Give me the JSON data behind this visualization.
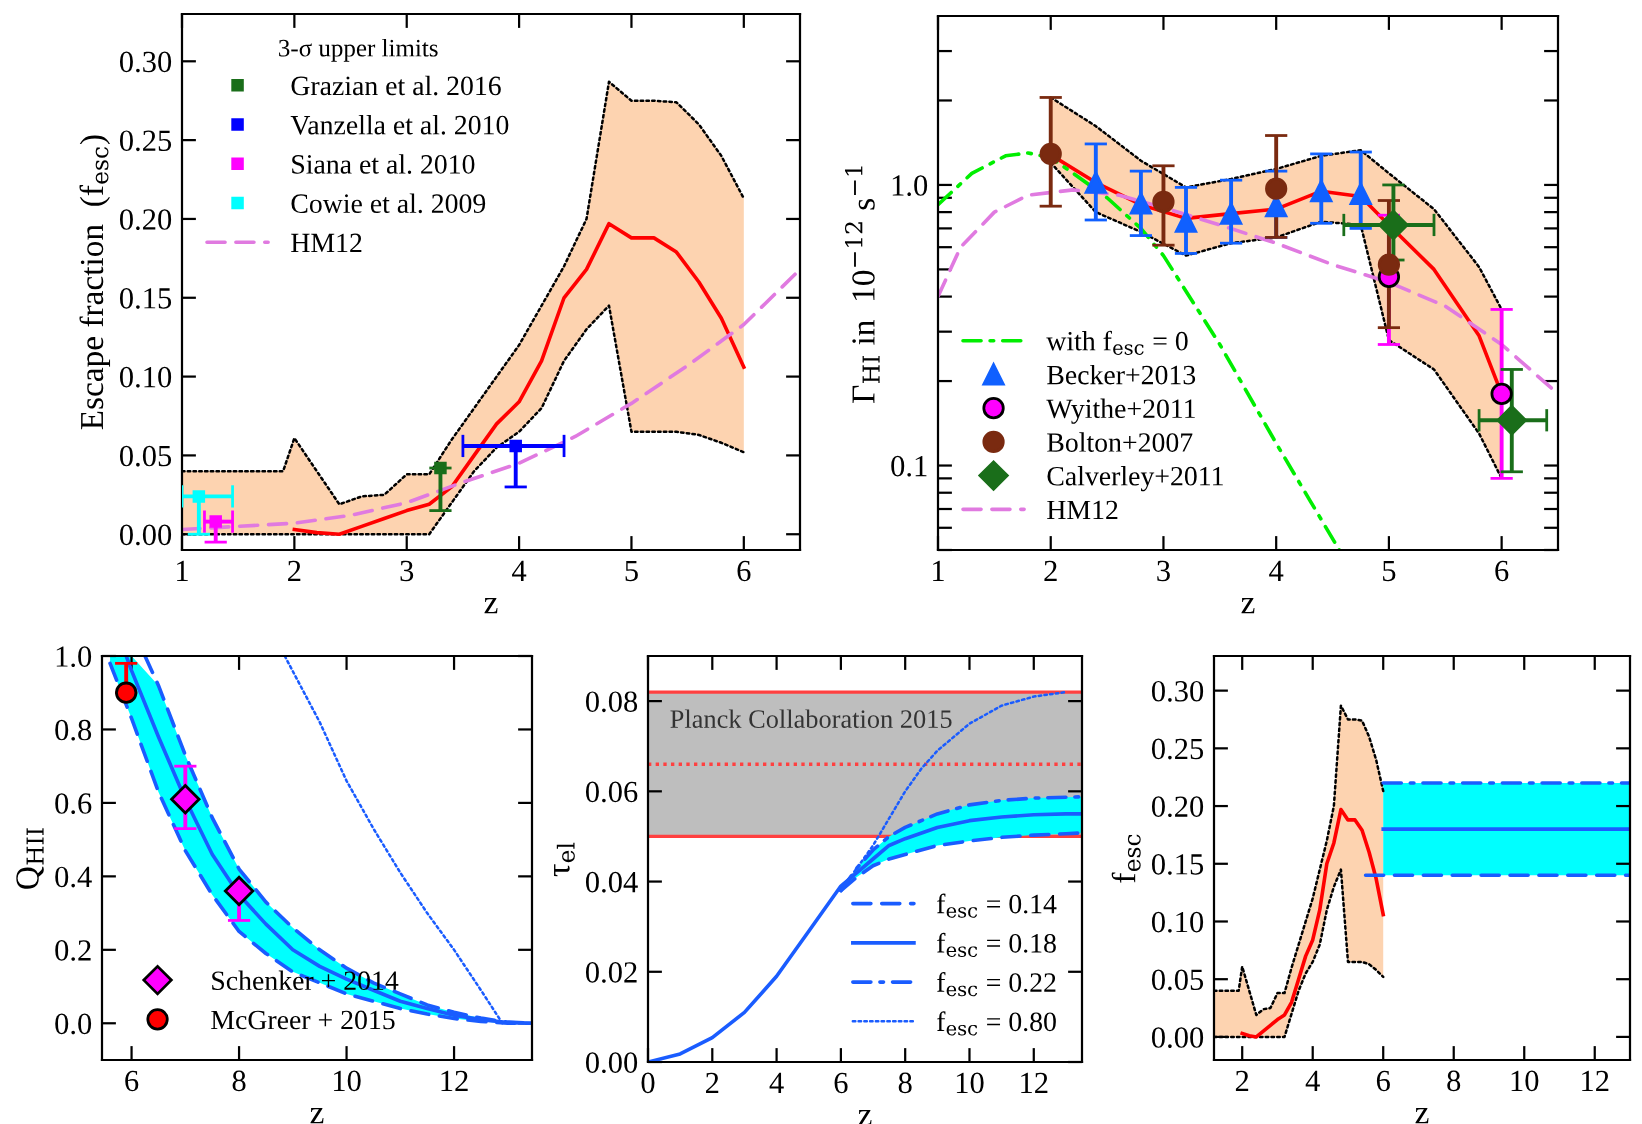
{
  "chart_data": [
    {
      "type": "line",
      "xlabel": "z",
      "ylabel": "Escape fraction  (f$_{esc}$)",
      "xlim": [
        1,
        6.5
      ],
      "ylim": [
        -0.01,
        0.33
      ],
      "xticks": [
        1,
        2,
        3,
        4,
        5,
        6
      ],
      "yticks": [
        {
          "value": 0,
          "label": "0.00"
        },
        {
          "value": 0.05,
          "label": "0.05"
        },
        {
          "value": 0.1,
          "label": "0.10"
        },
        {
          "value": 0.15,
          "label": "0.15"
        },
        {
          "value": 0.2,
          "label": "0.20"
        },
        {
          "value": 0.25,
          "label": "0.25"
        },
        {
          "value": 0.3,
          "label": "0.30"
        }
      ],
      "legend": "top left",
      "legend_title": "3-σ upper limits",
      "series": [
        {
          "type": "line",
          "color": "#fdd3b0",
          "x": [
            1.0,
            1.2,
            1.4,
            1.6,
            1.8,
            1.9,
            2.0,
            2.2,
            2.4,
            2.6,
            2.8,
            3.0,
            3.2,
            3.4,
            3.6,
            3.8,
            4.0,
            4.2,
            4.4,
            4.6,
            4.8,
            5.0,
            5.2,
            5.4,
            5.6,
            5.8,
            6.0
          ],
          "values": [
            null,
            null,
            null,
            null,
            null,
            null,
            null,
            null,
            null,
            null,
            null,
            null,
            null,
            null,
            null,
            null,
            null,
            null,
            null,
            null,
            null,
            null,
            null,
            null,
            null,
            null,
            null
          ],
          "lower": [
            0,
            0,
            0,
            0,
            0,
            0,
            0,
            0,
            0,
            0,
            0,
            0,
            0,
            0.02,
            0.04,
            0.055,
            0.065,
            0.08,
            0.11,
            0.13,
            0.145,
            0.065,
            0.065,
            0.065,
            0.063,
            0.058,
            0.052
          ],
          "upper": [
            0.04,
            0.04,
            0.04,
            0.04,
            0.04,
            0.04,
            0.061,
            0.04,
            0.019,
            0.024,
            0.025,
            0.038,
            0.038,
            0.06,
            0.08,
            0.1,
            0.12,
            0.145,
            0.17,
            0.2,
            0.287,
            0.275,
            0.275,
            0.274,
            0.26,
            0.24,
            0.213
          ]
        },
        {
          "type": "line",
          "color": "#000000",
          "line_style": "dotted",
          "x": [
            1.0,
            1.2,
            1.4,
            1.6,
            1.8,
            1.9,
            2.0,
            2.2,
            2.4,
            2.6,
            2.8,
            3.0,
            3.2,
            3.4,
            3.6,
            3.8,
            4.0,
            4.2,
            4.4,
            4.6,
            4.8,
            5.0,
            5.2,
            5.4,
            5.6,
            5.8,
            6.0
          ],
          "values": [
            0,
            0,
            0,
            0,
            0,
            0,
            0,
            0,
            0,
            0,
            0,
            0,
            0,
            0.02,
            0.04,
            0.055,
            0.065,
            0.08,
            0.11,
            0.13,
            0.145,
            0.065,
            0.065,
            0.065,
            0.063,
            0.058,
            0.052
          ]
        },
        {
          "type": "line",
          "color": "#000000",
          "line_style": "dotted",
          "x": [
            1.0,
            1.2,
            1.4,
            1.6,
            1.8,
            1.9,
            2.0,
            2.2,
            2.4,
            2.6,
            2.8,
            3.0,
            3.2,
            3.4,
            3.6,
            3.8,
            4.0,
            4.2,
            4.4,
            4.6,
            4.8,
            5.0,
            5.2,
            5.4,
            5.6,
            5.8,
            6.0
          ],
          "values": [
            0.04,
            0.04,
            0.04,
            0.04,
            0.04,
            0.04,
            0.061,
            0.04,
            0.019,
            0.024,
            0.025,
            0.038,
            0.038,
            0.06,
            0.08,
            0.1,
            0.12,
            0.145,
            0.17,
            0.2,
            0.287,
            0.275,
            0.275,
            0.274,
            0.26,
            0.24,
            0.213
          ]
        },
        {
          "type": "line",
          "color": "#ff0000",
          "line_style": "solid",
          "x": [
            2.0,
            2.2,
            2.4,
            2.6,
            2.8,
            3.0,
            3.2,
            3.4,
            3.6,
            3.8,
            4.0,
            4.2,
            4.4,
            4.6,
            4.8,
            5.0,
            5.2,
            5.4,
            5.6,
            5.8,
            6.0
          ],
          "values": [
            0.003,
            0.001,
            0.0,
            0.005,
            0.01,
            0.015,
            0.019,
            0.03,
            0.05,
            0.07,
            0.084,
            0.11,
            0.15,
            0.168,
            0.197,
            0.188,
            0.188,
            0.179,
            0.16,
            0.137,
            0.106
          ]
        },
        {
          "type": "scatter",
          "name": "Grazian et al. 2016",
          "color": "#1a6e1a",
          "marker": "square",
          "x": [
            3.3
          ],
          "values": [
            0.042
          ],
          "errors": [
            [
              0.015,
              0.042
            ]
          ]
        },
        {
          "type": "scatter",
          "name": "Vanzella et al. 2010",
          "color": "#0000ff",
          "marker": "square",
          "x": [
            3.97
          ],
          "values": [
            0.056
          ],
          "errors": [
            [
              0.03,
              0.056
            ]
          ],
          "xerrors": [
            [
              3.5,
              4.4
            ]
          ]
        },
        {
          "type": "scatter",
          "name": "Siana et al. 2010",
          "color": "#ff00ff",
          "marker": "square",
          "x": [
            1.3
          ],
          "values": [
            0.008
          ],
          "errors": [
            [
              -0.005,
              0.008
            ]
          ],
          "xerrors": [
            [
              1.2,
              1.45
            ]
          ]
        },
        {
          "type": "scatter",
          "name": "Cowie et al. 2009",
          "color": "#00ffff",
          "marker": "square",
          "x": [
            1.15
          ],
          "values": [
            0.024
          ],
          "errors": [
            [
              0.0,
              0.024
            ]
          ],
          "xerrors": [
            [
              1.0,
              1.45
            ]
          ]
        },
        {
          "name": "HM12",
          "color": "#e07ae0",
          "line_style": "dashed",
          "x": [
            1,
            1.5,
            2,
            2.5,
            3,
            3.5,
            4,
            4.5,
            5,
            5.5,
            6,
            6.5
          ],
          "values": [
            0.003,
            0.005,
            0.007,
            0.012,
            0.02,
            0.033,
            0.045,
            0.062,
            0.083,
            0.107,
            0.133,
            0.168
          ]
        }
      ]
    },
    {
      "type": "line",
      "xlabel": "z",
      "ylabel": "Γ$_{HI}$ in  10$^{−12}$ s$^{−1}$",
      "log": "y",
      "xlim": [
        1,
        6.5
      ],
      "ylim": [
        0.05,
        4
      ],
      "xticks": [
        1,
        2,
        3,
        4,
        5,
        6
      ],
      "yticks": [
        {
          "value": 0.05,
          "label": null
        },
        {
          "value": 0.06,
          "label": null
        },
        {
          "value": 0.07,
          "label": null
        },
        {
          "value": 0.08,
          "label": null
        },
        {
          "value": 0.09,
          "label": null
        },
        {
          "value": 0.1,
          "label": "0.1"
        },
        {
          "value": 0.2,
          "label": null
        },
        {
          "value": 0.3,
          "label": null
        },
        {
          "value": 0.4,
          "label": null
        },
        {
          "value": 0.5,
          "label": null
        },
        {
          "value": 0.6,
          "label": null
        },
        {
          "value": 0.7,
          "label": null
        },
        {
          "value": 0.8,
          "label": null
        },
        {
          "value": 0.9,
          "label": null
        },
        {
          "value": 1,
          "label": "1.0"
        },
        {
          "value": 2,
          "label": null
        },
        {
          "value": 3,
          "label": null
        }
      ],
      "legend": "lower left",
      "series": [
        {
          "type": "line",
          "color": "#fdd3b0",
          "x": [
            2.0,
            2.4,
            2.8,
            3.2,
            3.6,
            4.0,
            4.4,
            4.75,
            5.0,
            5.4,
            5.8,
            6.0
          ],
          "values": [
            null,
            null,
            null,
            null,
            null,
            null,
            null,
            null,
            null,
            null,
            null,
            null
          ],
          "lower": [
            1.2,
            0.8,
            0.68,
            0.56,
            0.62,
            0.65,
            0.74,
            0.72,
            0.28,
            0.22,
            0.13,
            0.09
          ],
          "upper": [
            2.05,
            1.62,
            1.22,
            0.98,
            1.05,
            1.14,
            1.27,
            1.33,
            1.1,
            0.82,
            0.51,
            0.36
          ]
        },
        {
          "type": "line",
          "color": "#000000",
          "line_style": "dotted",
          "x": [
            2.0,
            2.4,
            2.8,
            3.2,
            3.6,
            4.0,
            4.4,
            4.75,
            5.0,
            5.4,
            5.8,
            6.0
          ],
          "values": [
            1.2,
            0.8,
            0.68,
            0.56,
            0.62,
            0.65,
            0.74,
            0.72,
            0.28,
            0.22,
            0.13,
            0.09
          ]
        },
        {
          "type": "line",
          "color": "#000000",
          "line_style": "dotted",
          "x": [
            2.0,
            2.4,
            2.8,
            3.2,
            3.6,
            4.0,
            4.4,
            4.75,
            5.0,
            5.4,
            5.8,
            6.0
          ],
          "values": [
            2.05,
            1.62,
            1.22,
            0.98,
            1.05,
            1.14,
            1.27,
            1.33,
            1.1,
            0.82,
            0.51,
            0.36
          ]
        },
        {
          "type": "line",
          "color": "#ff0000",
          "line_style": "solid",
          "x": [
            2.0,
            2.4,
            2.8,
            3.2,
            3.6,
            4.0,
            4.4,
            4.75,
            5.0,
            5.4,
            5.8,
            6.0
          ],
          "values": [
            1.28,
            1.02,
            0.85,
            0.76,
            0.79,
            0.82,
            0.95,
            0.91,
            0.72,
            0.5,
            0.29,
            0.18
          ]
        },
        {
          "name": "with f$_{esc}$ = 0",
          "color": "#00ee00",
          "line_style": "dashdot",
          "x": [
            1.0,
            1.3,
            1.6,
            1.8,
            2.0,
            2.2,
            2.5,
            2.8,
            3.0,
            3.5,
            4.0,
            4.3,
            4.56
          ],
          "values": [
            0.85,
            1.1,
            1.27,
            1.3,
            1.25,
            1.1,
            0.9,
            0.7,
            0.56,
            0.27,
            0.12,
            0.075,
            0.05
          ]
        },
        {
          "type": "scatter",
          "name": "Becker+2013",
          "color": "#1060ff",
          "marker": "triangle",
          "x": [
            2.4,
            2.8,
            3.2,
            3.6,
            4.0,
            4.4,
            4.75
          ],
          "values": [
            1.02,
            0.86,
            0.74,
            0.79,
            0.84,
            0.95,
            0.93
          ],
          "errors": [
            [
              0.75,
              1.4
            ],
            [
              0.66,
              1.12
            ],
            [
              0.57,
              0.98
            ],
            [
              0.62,
              1.04
            ],
            [
              0.65,
              1.12
            ],
            [
              0.73,
              1.29
            ],
            [
              0.7,
              1.31
            ]
          ]
        },
        {
          "type": "scatter",
          "name": "Wyithe+2011",
          "color": "#ff00ff",
          "marker": "circle",
          "x": [
            5.0,
            6.0
          ],
          "values": [
            0.47,
            0.18
          ],
          "errors": [
            [
              0.27,
              0.78
            ],
            [
              0.09,
              0.36
            ]
          ]
        },
        {
          "type": "scatter",
          "name": "Bolton+2007",
          "color": "#7a2a10",
          "marker": "circle",
          "x": [
            2.0,
            3.0,
            4.0,
            5.0
          ],
          "values": [
            1.29,
            0.87,
            0.97,
            0.52
          ],
          "errors": [
            [
              0.84,
              2.05
            ],
            [
              0.61,
              1.17
            ],
            [
              0.65,
              1.5
            ],
            [
              0.31,
              0.88
            ]
          ]
        },
        {
          "type": "scatter",
          "name": "Calverley+2011",
          "color": "#1a6e1a",
          "marker": "diamond",
          "x": [
            5.04,
            6.09
          ],
          "values": [
            0.72,
            0.145
          ],
          "errors": [
            [
              0.54,
              1.0
            ],
            [
              0.095,
              0.22
            ]
          ],
          "xerrors": [
            [
              4.6,
              5.4
            ],
            [
              5.8,
              6.4
            ]
          ]
        },
        {
          "name": "HM12",
          "color": "#e07ae0",
          "line_style": "dashed",
          "x": [
            1.0,
            1.2,
            1.5,
            1.8,
            2.2,
            2.6,
            3.0,
            3.5,
            4.0,
            4.5,
            5.0,
            5.5,
            6.0,
            6.5
          ],
          "values": [
            0.4,
            0.6,
            0.8,
            0.92,
            0.96,
            0.92,
            0.83,
            0.72,
            0.62,
            0.52,
            0.45,
            0.37,
            0.27,
            0.18
          ]
        }
      ]
    },
    {
      "type": "line",
      "xlabel": "z",
      "ylabel": "Q$_{HII}$",
      "xlim": [
        5.45,
        13.45
      ],
      "ylim": [
        -0.1,
        1.0
      ],
      "xticks": [
        6,
        8,
        10,
        12
      ],
      "yticks": [
        {
          "value": 0,
          "label": "0.0"
        },
        {
          "value": 0.2,
          "label": "0.2"
        },
        {
          "value": 0.4,
          "label": "0.4"
        },
        {
          "value": 0.6,
          "label": "0.6"
        },
        {
          "value": 0.8,
          "label": "0.8"
        },
        {
          "value": 1.0,
          "label": "1.0"
        }
      ],
      "legend": "lower left",
      "series": [
        {
          "type": "line",
          "color": "#00ffff",
          "x": [
            5.6,
            6.0,
            6.5,
            7.0,
            7.5,
            8.0,
            8.5,
            9.0,
            9.5,
            10,
            10.5,
            11,
            11.5,
            12,
            12.5,
            13,
            13.45
          ],
          "values": [
            null,
            null,
            null,
            null,
            null,
            null,
            null,
            null,
            null,
            null,
            null,
            null,
            null,
            null,
            null,
            null,
            null
          ],
          "lower": [
            0.98,
            0.83,
            0.63,
            0.47,
            0.35,
            0.25,
            0.19,
            0.14,
            0.11,
            0.08,
            0.06,
            0.04,
            0.025,
            0.013,
            0.005,
            0.0,
            0.0
          ],
          "upper": [
            1.0,
            1.0,
            0.92,
            0.73,
            0.56,
            0.42,
            0.33,
            0.26,
            0.2,
            0.15,
            0.11,
            0.08,
            0.05,
            0.03,
            0.014,
            0.003,
            0.0
          ]
        },
        {
          "type": "line",
          "color": "#1a5cff",
          "line_style": "dashed",
          "x": [
            5.6,
            6.0,
            6.5,
            7.0,
            7.5,
            8.0,
            8.5,
            9.0,
            9.5,
            10,
            10.5,
            11,
            11.5,
            12,
            12.5,
            13,
            13.45
          ],
          "values": [
            0.98,
            0.83,
            0.63,
            0.47,
            0.35,
            0.25,
            0.19,
            0.14,
            0.11,
            0.08,
            0.06,
            0.04,
            0.025,
            0.013,
            0.005,
            0.0,
            0.0
          ]
        },
        {
          "type": "line",
          "color": "#1a5cff",
          "line_style": "dashed",
          "x": [
            6.25,
            6.5,
            7.0,
            7.5,
            8.0,
            8.5,
            9.0,
            9.5,
            10,
            10.5,
            11,
            11.5,
            12,
            12.5,
            13,
            13.45
          ],
          "values": [
            1.0,
            0.92,
            0.73,
            0.56,
            0.42,
            0.33,
            0.26,
            0.2,
            0.15,
            0.11,
            0.08,
            0.05,
            0.03,
            0.014,
            0.003,
            0.0
          ]
        },
        {
          "type": "line",
          "color": "#1a5cff",
          "line_style": "solid",
          "x": [
            5.9,
            6.0,
            6.5,
            7.0,
            7.5,
            8.0,
            8.5,
            9.0,
            9.5,
            10,
            10.5,
            11,
            11.5,
            12,
            12.5,
            13,
            13.45
          ],
          "values": [
            1.0,
            0.96,
            0.78,
            0.61,
            0.46,
            0.35,
            0.27,
            0.2,
            0.155,
            0.12,
            0.09,
            0.06,
            0.04,
            0.022,
            0.01,
            0.002,
            0.0
          ]
        },
        {
          "type": "line",
          "color": "#1a5cff",
          "line_style": "dotted",
          "x": [
            8.85,
            9.5,
            10,
            10.5,
            11,
            11.5,
            12,
            12.5,
            12.9
          ],
          "values": [
            1.0,
            0.82,
            0.66,
            0.53,
            0.41,
            0.3,
            0.2,
            0.09,
            0.0
          ]
        },
        {
          "type": "scatter",
          "name": "Schenker + 2014",
          "color": "#ff00ff",
          "marker": "diamond",
          "x": [
            7.0,
            8.0
          ],
          "values": [
            0.61,
            0.36
          ],
          "errors": [
            [
              0.53,
              0.7
            ],
            [
              0.28,
              0.36
            ]
          ]
        },
        {
          "type": "scatter",
          "name": "McGreer + 2015",
          "color": "#ff0000",
          "marker": "circle",
          "x": [
            5.9
          ],
          "values": [
            0.9
          ],
          "errors": [
            [
              0.9,
              0.98
            ]
          ]
        }
      ]
    },
    {
      "type": "line",
      "xlabel": "z",
      "ylabel": "τ$_{el}$",
      "xlim": [
        0,
        13.5
      ],
      "ylim": [
        0,
        0.09
      ],
      "xticks": [
        0,
        2,
        4,
        6,
        8,
        10,
        12
      ],
      "yticks": [
        {
          "value": 0,
          "label": "0.00"
        },
        {
          "value": 0.02,
          "label": "0.02"
        },
        {
          "value": 0.04,
          "label": "0.04"
        },
        {
          "value": 0.06,
          "label": "0.06"
        },
        {
          "value": 0.08,
          "label": "0.08"
        }
      ],
      "legend": "lower right",
      "bands": [
        {
          "axis": "y",
          "from": 0.05,
          "to": 0.082,
          "label": "Planck Collaboration 2015",
          "color": "#bebebe"
        }
      ],
      "ref_lines": [
        {
          "axis": "y",
          "value": 0.05,
          "color": "#ff4040",
          "line_style": "solid"
        },
        {
          "axis": "y",
          "value": 0.082,
          "color": "#ff4040",
          "line_style": "solid"
        },
        {
          "axis": "y",
          "value": 0.066,
          "color": "#ff4040",
          "line_style": "dotted"
        }
      ],
      "series": [
        {
          "type": "line",
          "color": "#00ffff",
          "x": [
            6,
            6.5,
            7,
            7.5,
            8,
            9,
            10,
            11,
            12,
            13,
            13.5
          ],
          "values": [
            null,
            null,
            null,
            null,
            null,
            null,
            null,
            null,
            null,
            null,
            null
          ],
          "lower": [
            0.038,
            0.041,
            0.0435,
            0.045,
            0.046,
            0.048,
            0.049,
            0.0498,
            0.0503,
            0.0506,
            0.0508
          ],
          "upper": [
            0.038,
            0.043,
            0.047,
            0.05,
            0.052,
            0.055,
            0.057,
            0.058,
            0.0585,
            0.0587,
            0.0588
          ]
        },
        {
          "name": "f$_{esc}$ = 0.14",
          "color": "#1a5cff",
          "line_style": "dashed",
          "x": [
            6,
            6.5,
            7,
            7.5,
            8,
            9,
            10,
            11,
            12,
            13,
            13.5
          ],
          "values": [
            0.038,
            0.041,
            0.0435,
            0.045,
            0.046,
            0.048,
            0.049,
            0.0498,
            0.0503,
            0.0506,
            0.0508
          ]
        },
        {
          "name": "f$_{esc}$ = 0.18",
          "color": "#1a5cff",
          "line_style": "solid",
          "x": [
            0,
            1,
            2,
            3,
            4,
            5,
            6,
            6.5,
            7,
            7.5,
            8,
            9,
            10,
            11,
            12,
            13,
            13.5
          ],
          "values": [
            0,
            0.0018,
            0.0054,
            0.011,
            0.019,
            0.029,
            0.039,
            0.042,
            0.045,
            0.048,
            0.0495,
            0.052,
            0.0535,
            0.0543,
            0.0548,
            0.055,
            0.055
          ]
        },
        {
          "name": "f$_{esc}$ = 0.22",
          "color": "#1a5cff",
          "line_style": "dashdot",
          "x": [
            6,
            6.5,
            7,
            7.5,
            8,
            9,
            10,
            11,
            12,
            13,
            13.5
          ],
          "values": [
            0.038,
            0.043,
            0.047,
            0.05,
            0.052,
            0.055,
            0.057,
            0.058,
            0.0585,
            0.0587,
            0.0588
          ]
        },
        {
          "name": "f$_{esc}$ = 0.80",
          "color": "#1a5cff",
          "line_style": "dotted",
          "x": [
            6,
            6.5,
            7,
            7.5,
            8,
            8.5,
            9,
            10,
            11,
            12,
            13
          ],
          "values": [
            0.038,
            0.043,
            0.048,
            0.054,
            0.06,
            0.065,
            0.069,
            0.075,
            0.079,
            0.081,
            0.082
          ]
        }
      ]
    },
    {
      "type": "line",
      "xlabel": "z",
      "ylabel": "f$_{esc}$",
      "xlim": [
        1.2,
        13
      ],
      "ylim": [
        -0.02,
        0.33
      ],
      "xticks": [
        2,
        4,
        6,
        8,
        10,
        12
      ],
      "yticks": [
        {
          "value": 0,
          "label": "0.00"
        },
        {
          "value": 0.05,
          "label": "0.05"
        },
        {
          "value": 0.1,
          "label": "0.10"
        },
        {
          "value": 0.15,
          "label": "0.15"
        },
        {
          "value": 0.2,
          "label": "0.20"
        },
        {
          "value": 0.25,
          "label": "0.25"
        },
        {
          "value": 0.3,
          "label": "0.30"
        }
      ],
      "series": [
        {
          "type": "line",
          "color": "#fdd3b0",
          "x": [
            1.2,
            1.4,
            1.6,
            1.8,
            1.9,
            2.0,
            2.2,
            2.4,
            2.6,
            2.8,
            3.0,
            3.2,
            3.4,
            3.6,
            3.8,
            4.0,
            4.2,
            4.4,
            4.6,
            4.8,
            5.0,
            5.2,
            5.4,
            5.6,
            5.8,
            6.0
          ],
          "values": [
            null,
            null,
            null,
            null,
            null,
            null,
            null,
            null,
            null,
            null,
            null,
            null,
            null,
            null,
            null,
            null,
            null,
            null,
            null,
            null,
            null,
            null,
            null,
            null,
            null,
            null
          ],
          "lower": [
            0,
            0,
            0,
            0,
            0,
            0,
            0,
            0,
            0,
            0,
            0,
            0,
            0.02,
            0.04,
            0.055,
            0.065,
            0.08,
            0.11,
            0.13,
            0.145,
            0.065,
            0.065,
            0.065,
            0.063,
            0.058,
            0.052
          ],
          "upper": [
            0.04,
            0.04,
            0.04,
            0.04,
            0.04,
            0.061,
            0.04,
            0.019,
            0.024,
            0.025,
            0.038,
            0.038,
            0.06,
            0.08,
            0.1,
            0.12,
            0.145,
            0.17,
            0.2,
            0.287,
            0.275,
            0.275,
            0.274,
            0.26,
            0.24,
            0.213
          ]
        },
        {
          "type": "line",
          "color": "#000000",
          "line_style": "dotted",
          "x": [
            1.2,
            1.4,
            1.6,
            1.8,
            1.9,
            2.0,
            2.2,
            2.4,
            2.6,
            2.8,
            3.0,
            3.2,
            3.4,
            3.6,
            3.8,
            4.0,
            4.2,
            4.4,
            4.6,
            4.8,
            5.0,
            5.2,
            5.4,
            5.6,
            5.8,
            6.0
          ],
          "values": [
            0,
            0,
            0,
            0,
            0,
            0,
            0,
            0,
            0,
            0,
            0,
            0,
            0.02,
            0.04,
            0.055,
            0.065,
            0.08,
            0.11,
            0.13,
            0.145,
            0.065,
            0.065,
            0.065,
            0.063,
            0.058,
            0.052
          ]
        },
        {
          "type": "line",
          "color": "#000000",
          "line_style": "dotted",
          "x": [
            1.2,
            1.4,
            1.6,
            1.8,
            1.9,
            2.0,
            2.2,
            2.4,
            2.6,
            2.8,
            3.0,
            3.2,
            3.4,
            3.6,
            3.8,
            4.0,
            4.2,
            4.4,
            4.6,
            4.8,
            5.0,
            5.2,
            5.4,
            5.6,
            5.8,
            6.0
          ],
          "values": [
            0.04,
            0.04,
            0.04,
            0.04,
            0.04,
            0.061,
            0.04,
            0.019,
            0.024,
            0.025,
            0.038,
            0.038,
            0.06,
            0.08,
            0.1,
            0.12,
            0.145,
            0.17,
            0.2,
            0.287,
            0.275,
            0.275,
            0.274,
            0.26,
            0.24,
            0.213
          ]
        },
        {
          "type": "line",
          "color": "#ff0000",
          "line_style": "solid",
          "x": [
            2.0,
            2.2,
            2.4,
            2.6,
            2.8,
            3.0,
            3.2,
            3.4,
            3.6,
            3.8,
            4.0,
            4.2,
            4.4,
            4.6,
            4.8,
            5.0,
            5.2,
            5.4,
            5.6,
            5.8,
            6.0
          ],
          "values": [
            0.003,
            0.001,
            0.0,
            0.005,
            0.01,
            0.015,
            0.019,
            0.03,
            0.05,
            0.07,
            0.084,
            0.11,
            0.15,
            0.168,
            0.197,
            0.188,
            0.188,
            0.179,
            0.16,
            0.137,
            0.106
          ]
        },
        {
          "type": "line",
          "color": "#00ffff",
          "x": [
            6,
            13
          ],
          "values": [
            null,
            null
          ],
          "lower": [
            0.14,
            0.14
          ],
          "upper": [
            0.22,
            0.22
          ]
        },
        {
          "type": "line",
          "color": "#1a5cff",
          "line_style": "solid",
          "x": [
            6,
            13
          ],
          "values": [
            0.18,
            0.18
          ]
        },
        {
          "type": "line",
          "color": "#1a5cff",
          "line_style": "dashed",
          "x": [
            5.5,
            13
          ],
          "values": [
            0.14,
            0.14
          ]
        },
        {
          "type": "line",
          "color": "#1a5cff",
          "line_style": "dashdot",
          "x": [
            6,
            13
          ],
          "values": [
            0.22,
            0.22
          ]
        }
      ]
    }
  ]
}
